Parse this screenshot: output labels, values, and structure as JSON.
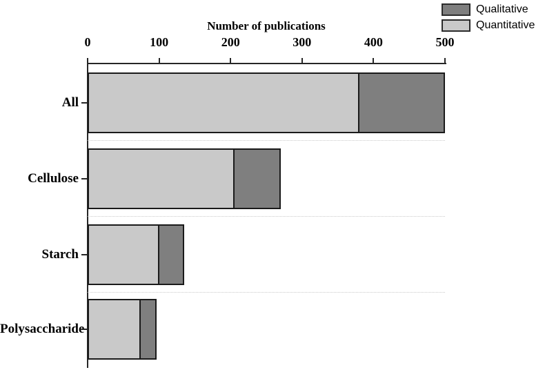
{
  "chart_data": {
    "type": "bar",
    "orientation": "horizontal",
    "stacked": true,
    "title": "Number of publications",
    "xlabel": "Number of publications",
    "ylabel": "",
    "categories": [
      "All",
      "Cellulose",
      "Starch",
      "Polysaccharide"
    ],
    "series": [
      {
        "name": "Quantitative",
        "color": "#c9c9c9",
        "values": [
          380,
          205,
          100,
          75
        ]
      },
      {
        "name": "Qualitative",
        "color": "#7f7f7f",
        "values": [
          120,
          65,
          35,
          22
        ]
      }
    ],
    "totals": [
      500,
      270,
      135,
      97
    ],
    "xlim": [
      0,
      500
    ],
    "xticks": [
      0,
      100,
      200,
      300,
      400,
      500
    ],
    "grid": "off",
    "legend": {
      "position": "top-right",
      "entries": [
        {
          "label": "Qualitative",
          "color": "#7f7f7f"
        },
        {
          "label": "Quantitative",
          "color": "#c9c9c9"
        }
      ]
    },
    "colors": {
      "axis": "#262626",
      "bar_border": "#1a1a1a",
      "separator": "#c9c9c9",
      "background": "#ffffff"
    }
  }
}
